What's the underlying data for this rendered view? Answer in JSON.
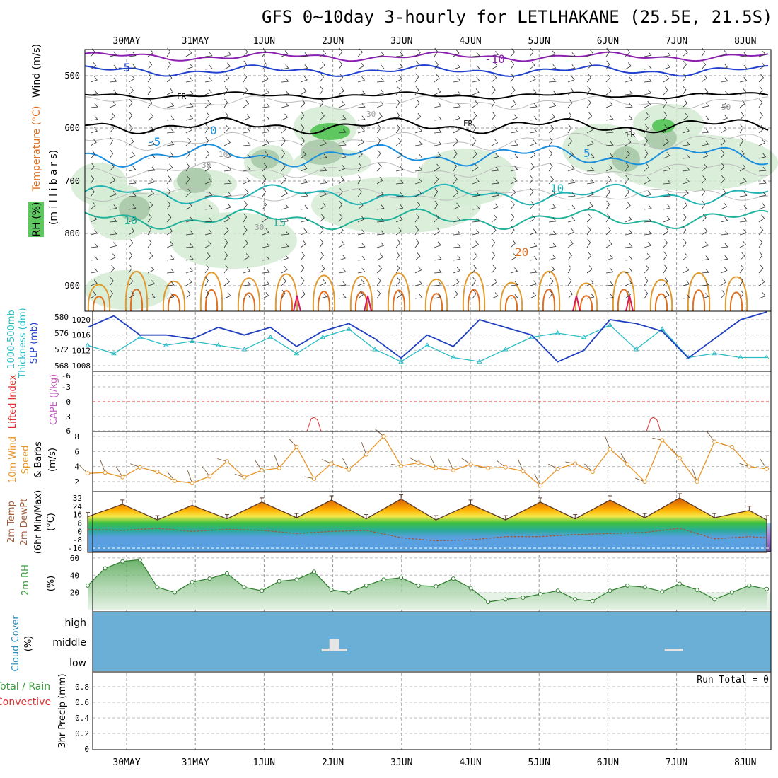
{
  "title": "GFS 0~10day 3-hourly for LETLHAKANE (25.5E, 21.5S)",
  "date_labels": [
    "30MAY",
    "31MAY",
    "1JUN",
    "2JUN",
    "3JUN",
    "4JUN",
    "5JUN",
    "6JUN",
    "7JUN",
    "8JUN"
  ],
  "colors": {
    "temp_contour": "#e07020",
    "rh_fill": "#cfe8cf",
    "cloud_bg": "#6baed6",
    "slp": "#1f3fbf",
    "thickness": "#2bbcc4",
    "cape": "#e03030",
    "wind": "#e8962a",
    "rh2m": "#3a9a3a"
  },
  "panels": {
    "upper": {
      "ylabel_wind": "Wind (m/s)",
      "ylabel_temp": "Temperature (°C)",
      "ylabel_rh": "RH (%)",
      "ylabel_mb": "(m i l l i b a r s)",
      "yticks": [
        "500",
        "600",
        "700",
        "800",
        "900"
      ],
      "contour_labels": [
        "-5",
        "-10",
        "FR",
        "FR",
        "FR",
        "0",
        "-5",
        "5",
        "10",
        "15",
        "20",
        "10",
        "30",
        "30",
        "10",
        "30",
        "50",
        "-5",
        "0",
        "5",
        "10",
        "15"
      ]
    },
    "slp": {
      "ylabel_a": "1000-500mb",
      "ylabel_b": "Thickness (dm)",
      "ylabel_c": "SLP (mb)",
      "left_ticks": [
        "580",
        "576",
        "572",
        "568"
      ],
      "right_ticks": [
        "1020",
        "1016",
        "1012",
        "1008"
      ]
    },
    "cape": {
      "ylabel_a": "Lifted Index",
      "ylabel_b": "CAPE (J/kg)",
      "ticks": [
        "-6",
        "-3",
        "0",
        "3",
        "6"
      ]
    },
    "wind": {
      "ylabel_a": "10m Wind",
      "ylabel_b": "Speed",
      "ylabel_c": "& Barbs",
      "ylabel_d": "(m/s)",
      "ticks": [
        "8",
        "6",
        "4",
        "2"
      ]
    },
    "temp": {
      "ylabel_a": "2m Temp",
      "ylabel_b": "2m DewPt",
      "ylabel_c": "(6hr Min/Max)",
      "ylabel_d": "(°C)",
      "ticks": [
        "32",
        "24",
        "16",
        "8",
        "0",
        "-8",
        "-16"
      ]
    },
    "rh": {
      "ylabel_a": "2m RH",
      "ylabel_b": "(%)",
      "ticks": [
        "60",
        "40",
        "20"
      ]
    },
    "cloud": {
      "ylabel_a": "Cloud Cover",
      "ylabel_b": "(%)",
      "levels": [
        "high",
        "middle",
        "low"
      ]
    },
    "precip": {
      "ylabel_a": "Total / Rain",
      "ylabel_b": "Convective",
      "ylabel_c": "3hr Precip (mm)",
      "ticks": [
        "0.8",
        "0.6",
        "0.4",
        "0.2",
        "0"
      ],
      "run_total": "Run Total = 0"
    }
  },
  "chart_data": [
    {
      "type": "line",
      "name": "slp_thickness",
      "x_hours": [
        0,
        9,
        18,
        27,
        36,
        45,
        54,
        63,
        72,
        81,
        90,
        99,
        108,
        117,
        126,
        135,
        144,
        153,
        162,
        171,
        180,
        189,
        198,
        207,
        216,
        225,
        234
      ],
      "series": [
        {
          "name": "SLP (mb)",
          "values": [
            1018,
            1021,
            1016,
            1016,
            1015,
            1018,
            1016,
            1018,
            1013,
            1017,
            1019,
            1015,
            1010,
            1016,
            1013,
            1020,
            1018,
            1016,
            1009,
            1012,
            1020,
            1019,
            1017,
            1010,
            1015,
            1020,
            1022
          ]
        },
        {
          "name": "1000-500mb Thickness (dm)",
          "values": [
            573,
            571,
            575,
            573,
            574,
            573,
            572,
            575,
            571,
            575,
            577,
            572,
            569,
            573,
            570,
            569,
            572,
            575,
            576,
            575,
            578,
            572,
            577,
            570,
            571,
            570,
            570
          ]
        }
      ],
      "y_left_ticks": [
        568,
        572,
        576,
        580
      ],
      "y_right_ticks": [
        1008,
        1012,
        1016,
        1020
      ]
    },
    {
      "type": "line",
      "name": "lifted_index_cape",
      "x_hours": [
        0,
        234
      ],
      "y_range": [
        -6,
        6
      ],
      "reference_line": 0,
      "spikes_hours": [
        78,
        195
      ]
    },
    {
      "type": "line",
      "name": "10m_wind_speed",
      "x_hours": [
        0,
        6,
        12,
        18,
        24,
        30,
        36,
        42,
        48,
        54,
        60,
        66,
        72,
        78,
        84,
        90,
        96,
        102,
        108,
        114,
        120,
        126,
        132,
        138,
        144,
        150,
        156,
        162,
        168,
        174,
        180,
        186,
        192,
        198,
        204,
        210,
        216,
        222,
        228,
        234
      ],
      "values": [
        3.1,
        3.2,
        2.6,
        3.9,
        3.3,
        2.1,
        1.8,
        2.7,
        4.7,
        2.6,
        3.5,
        3.8,
        6.6,
        2.4,
        4.4,
        3.6,
        5.6,
        8.0,
        4.1,
        4.5,
        3.8,
        3.5,
        4.3,
        3.8,
        3.9,
        3.4,
        1.5,
        3.7,
        4.4,
        3.3,
        6.3,
        4.3,
        2.0,
        7.5,
        5.1,
        2.0,
        7.3,
        6.6,
        4.0,
        3.7
      ],
      "y_range": [
        1,
        9
      ]
    },
    {
      "type": "area",
      "name": "2m_temp_dewpoint",
      "x_hours": [
        0,
        12,
        24,
        36,
        48,
        60,
        72,
        84,
        96,
        108,
        120,
        132,
        144,
        156,
        168,
        180,
        192,
        204,
        216,
        228,
        234
      ],
      "series": [
        {
          "name": "2m Temp",
          "values": [
            14,
            26,
            11,
            25,
            12,
            28,
            13,
            30,
            12,
            31,
            11,
            26,
            11,
            28,
            12,
            30,
            13,
            32,
            13,
            20,
            11
          ]
        },
        {
          "name": "2m DewPt",
          "values": [
            2,
            1,
            3,
            0,
            2,
            1,
            -2,
            0,
            1,
            -6,
            -9,
            -8,
            -5,
            -5,
            -3,
            -2,
            -1,
            3,
            -7,
            -5,
            -6
          ]
        }
      ],
      "y_range": [
        -20,
        36
      ]
    },
    {
      "type": "area",
      "name": "2m_rh",
      "x_hours": [
        0,
        6,
        12,
        18,
        24,
        30,
        36,
        42,
        48,
        54,
        60,
        66,
        72,
        78,
        84,
        90,
        96,
        102,
        108,
        114,
        120,
        126,
        132,
        138,
        144,
        150,
        156,
        162,
        168,
        174,
        180,
        186,
        192,
        198,
        204,
        210,
        216,
        222,
        228,
        234
      ],
      "values": [
        28,
        48,
        56,
        58,
        26,
        20,
        32,
        36,
        42,
        26,
        22,
        33,
        35,
        44,
        23,
        20,
        28,
        35,
        37,
        28,
        27,
        36,
        25,
        9,
        12,
        14,
        18,
        22,
        12,
        10,
        22,
        28,
        26,
        21,
        30,
        23,
        12,
        20,
        28,
        24
      ],
      "y_range": [
        0,
        64
      ]
    },
    {
      "type": "area",
      "name": "cloud_cover",
      "levels": [
        "low",
        "middle",
        "high"
      ],
      "note_hours": [
        85,
        202
      ]
    },
    {
      "type": "bar",
      "name": "3hr_precip",
      "values": [],
      "y_range": [
        0,
        0.9
      ]
    }
  ]
}
